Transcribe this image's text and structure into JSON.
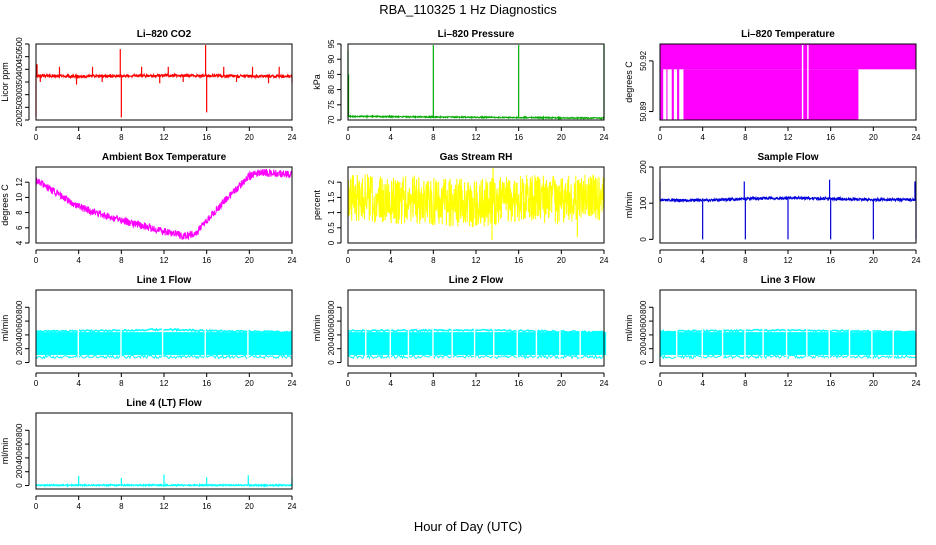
{
  "page": {
    "title": "RBA_110325  1 Hz Diagnostics",
    "xlabel": "Hour of Day (UTC)"
  },
  "chart_data": [
    {
      "type": "line",
      "title": "Li–820 CO2",
      "ylabel": "Licor ppm",
      "color": "#ff0000",
      "xlim": [
        0,
        24
      ],
      "ylim": [
        200,
        500
      ],
      "xticks": [
        0,
        4,
        8,
        12,
        16,
        20,
        24
      ],
      "yticks": [
        200,
        250,
        300,
        350,
        400,
        450,
        500
      ],
      "series": [
        {
          "base": [
            [
              0,
              375
            ],
            [
              4,
              372
            ],
            [
              8,
              374
            ],
            [
              12,
              376
            ],
            [
              16,
              375
            ],
            [
              20,
              373
            ],
            [
              24,
              372
            ]
          ],
          "noise": 6,
          "spikes": [
            [
              0,
              215
            ],
            [
              0.1,
              420
            ],
            [
              0.4,
              350
            ],
            [
              2.2,
              410
            ],
            [
              3.8,
              340
            ],
            [
              5.3,
              410
            ],
            [
              6.2,
              350
            ],
            [
              7.9,
              480
            ],
            [
              8,
              210
            ],
            [
              9.9,
              410
            ],
            [
              11.6,
              345
            ],
            [
              12.4,
              410
            ],
            [
              13.8,
              350
            ],
            [
              15.9,
              515
            ],
            [
              16,
              230
            ],
            [
              17.6,
              410
            ],
            [
              18.8,
              350
            ],
            [
              20.3,
              410
            ],
            [
              21.8,
              345
            ],
            [
              22.8,
              410
            ],
            [
              24,
              345
            ]
          ]
        }
      ]
    },
    {
      "type": "line",
      "title": "Li–820 Pressure",
      "ylabel": "kPa",
      "color": "#00aa00",
      "xlim": [
        0,
        24
      ],
      "ylim": [
        70,
        95
      ],
      "xticks": [
        0,
        4,
        8,
        12,
        16,
        20,
        24
      ],
      "yticks": [
        70,
        75,
        80,
        85,
        90,
        95
      ],
      "series": [
        {
          "base": [
            [
              0,
              71.2
            ],
            [
              8,
              71
            ],
            [
              16,
              70.8
            ],
            [
              24,
              70.6
            ]
          ],
          "noise": 0.2,
          "spikes": [
            [
              0,
              93
            ],
            [
              0.05,
              85
            ],
            [
              8,
              96
            ],
            [
              16,
              96
            ],
            [
              24,
              96
            ]
          ]
        }
      ]
    },
    {
      "type": "area",
      "title": "Li–820 Temperature",
      "ylabel": "degrees C",
      "color": "#ff00ff",
      "xlim": [
        0,
        24
      ],
      "ylim": [
        50.885,
        50.93
      ],
      "xticks": [
        0,
        4,
        8,
        12,
        16,
        20,
        24
      ],
      "yticks": [
        50.89,
        50.92
      ],
      "bands": [
        {
          "x0": 0,
          "x1": 24,
          "lo": 50.915,
          "hi": 50.93
        },
        {
          "x0": 0,
          "x1": 0.3,
          "lo": 50.885,
          "hi": 50.915
        },
        {
          "x0": 0.6,
          "x1": 0.7,
          "lo": 50.885,
          "hi": 50.915
        },
        {
          "x0": 1.1,
          "x1": 1.3,
          "lo": 50.885,
          "hi": 50.915
        },
        {
          "x0": 1.6,
          "x1": 1.8,
          "lo": 50.885,
          "hi": 50.915
        },
        {
          "x0": 2.2,
          "x1": 18.6,
          "lo": 50.885,
          "hi": 50.915
        }
      ],
      "gaps": [
        13.3,
        13.8
      ]
    },
    {
      "type": "line",
      "title": "Ambient Box Temperature",
      "ylabel": "degrees C",
      "color": "#ff00ff",
      "xlim": [
        0,
        24
      ],
      "ylim": [
        4,
        14
      ],
      "xticks": [
        0,
        4,
        8,
        12,
        16,
        20,
        24
      ],
      "yticks": [
        4,
        6,
        8,
        10,
        12
      ],
      "series": [
        {
          "base": [
            [
              0,
              12.2
            ],
            [
              2,
              10.5
            ],
            [
              4,
              8.8
            ],
            [
              6,
              7.8
            ],
            [
              8,
              7.0
            ],
            [
              10,
              6.3
            ],
            [
              12,
              5.5
            ],
            [
              14,
              4.9
            ],
            [
              15,
              5.3
            ],
            [
              16,
              7.0
            ],
            [
              18,
              10.0
            ],
            [
              20,
              12.8
            ],
            [
              21,
              13.3
            ],
            [
              24,
              13.0
            ]
          ],
          "noise": 0.5,
          "spikes": []
        }
      ]
    },
    {
      "type": "line",
      "title": "Gas Stream RH",
      "ylabel": "percent",
      "color": "#ffff00",
      "xlim": [
        0,
        24
      ],
      "ylim": [
        0,
        2.5
      ],
      "xticks": [
        0,
        4,
        8,
        12,
        16,
        20,
        24
      ],
      "yticks": [
        0,
        0.5,
        1,
        1.5,
        2
      ],
      "series": [
        {
          "base": [
            [
              0,
              1.5
            ],
            [
              6,
              1.4
            ],
            [
              12,
              1.3
            ],
            [
              16,
              1.5
            ],
            [
              20,
              1.4
            ],
            [
              24,
              1.5
            ]
          ],
          "noise": 0.8,
          "spikes": [
            [
              13.5,
              0.1
            ],
            [
              13.6,
              2.5
            ],
            [
              21.5,
              0.2
            ]
          ]
        }
      ]
    },
    {
      "type": "line",
      "title": "Sample Flow",
      "ylabel": "ml/min",
      "color": "#0000dd",
      "xlim": [
        0,
        24
      ],
      "ylim": [
        -10,
        200
      ],
      "xticks": [
        0,
        4,
        8,
        12,
        16,
        20,
        24
      ],
      "yticks": [
        0,
        100,
        200
      ],
      "series": [
        {
          "base": [
            [
              0,
              108
            ],
            [
              4,
              108
            ],
            [
              8,
              112
            ],
            [
              12,
              115
            ],
            [
              16,
              112
            ],
            [
              20,
              110
            ],
            [
              24,
              110
            ]
          ],
          "noise": 4,
          "spikes": [
            [
              0,
              160
            ],
            [
              4,
              0
            ],
            [
              7.9,
              160
            ],
            [
              8,
              0
            ],
            [
              12,
              0
            ],
            [
              15.9,
              165
            ],
            [
              16,
              0
            ],
            [
              20,
              0
            ],
            [
              23.9,
              160
            ],
            [
              24,
              0
            ]
          ]
        }
      ]
    },
    {
      "type": "area",
      "title": "Line 1 Flow",
      "ylabel": "ml/min",
      "color": "#00ffff",
      "xlim": [
        0,
        24
      ],
      "ylim": [
        -50,
        1050
      ],
      "xticks": [
        0,
        4,
        8,
        12,
        16,
        20,
        24
      ],
      "yticks": [
        0,
        200,
        400,
        600,
        800
      ],
      "bands": [
        {
          "x0": 0,
          "x1": 24,
          "lo": 110,
          "hi": 440
        }
      ],
      "gaps": [
        3.9,
        7.9,
        11.8,
        15.8,
        19.8
      ],
      "topline": [
        [
          0,
          450
        ],
        [
          10,
          470
        ],
        [
          12,
          480
        ],
        [
          16,
          460
        ],
        [
          24,
          440
        ]
      ]
    },
    {
      "type": "area",
      "title": "Line 2 Flow",
      "ylabel": "ml/min",
      "color": "#00ffff",
      "xlim": [
        0,
        24
      ],
      "ylim": [
        -50,
        1050
      ],
      "xticks": [
        0,
        4,
        8,
        12,
        16,
        20,
        24
      ],
      "yticks": [
        0,
        200,
        400,
        600,
        800
      ],
      "bands": [
        {
          "x0": 0,
          "x1": 24.2,
          "lo": 110,
          "hi": 440
        }
      ],
      "gaps": [
        1.6,
        3.9,
        5.6,
        7.9,
        9.7,
        11.8,
        13.6,
        15.8,
        17.6,
        19.8,
        21.7
      ],
      "topline": [
        [
          0,
          460
        ],
        [
          12,
          470
        ],
        [
          24,
          440
        ]
      ]
    },
    {
      "type": "area",
      "title": "Line 3 Flow",
      "ylabel": "ml/min",
      "color": "#00ffff",
      "xlim": [
        0,
        24
      ],
      "ylim": [
        -50,
        1050
      ],
      "xticks": [
        0,
        4,
        8,
        12,
        16,
        20,
        24
      ],
      "yticks": [
        0,
        200,
        400,
        600,
        800
      ],
      "bands": [
        {
          "x0": 0,
          "x1": 24,
          "lo": 110,
          "hi": 440
        }
      ],
      "gaps": [
        1.5,
        3.9,
        5.8,
        7.9,
        9.6,
        11.8,
        13.7,
        15.8,
        17.7,
        19.8,
        21.8
      ],
      "topline": [
        [
          0,
          450
        ],
        [
          12,
          470
        ],
        [
          24,
          440
        ]
      ]
    },
    {
      "type": "line",
      "title": "Line 4 (LT) Flow",
      "ylabel": "ml/min",
      "color": "#00ffff",
      "xlim": [
        0,
        24
      ],
      "ylim": [
        -50,
        1050
      ],
      "xticks": [
        0,
        4,
        8,
        12,
        16,
        20,
        24
      ],
      "yticks": [
        0,
        200,
        400,
        600,
        800
      ],
      "series": [
        {
          "base": [
            [
              0,
              5
            ],
            [
              24,
              5
            ]
          ],
          "noise": 10,
          "spikes": [
            [
              4,
              140
            ],
            [
              8,
              110
            ],
            [
              12,
              160
            ],
            [
              16,
              120
            ],
            [
              19.9,
              150
            ],
            [
              24,
              100
            ]
          ]
        }
      ]
    }
  ]
}
